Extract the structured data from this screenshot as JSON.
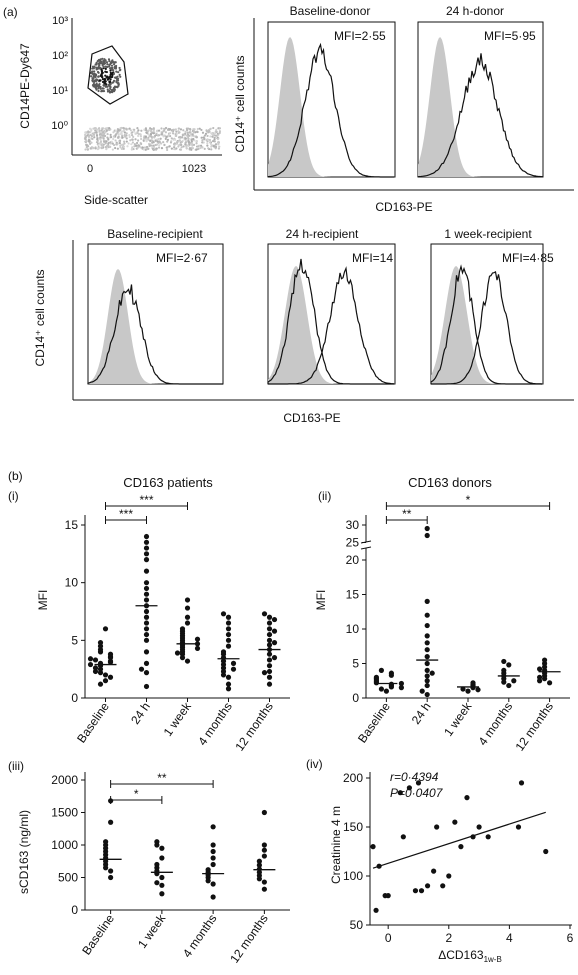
{
  "panel_labels": {
    "a": "(a)",
    "b": "(b)"
  },
  "chart_data": [
    {
      "id": "a-scatter",
      "type": "scatter",
      "xlabel": "Side-scatter",
      "ylabel": "CD14PE-Dy647",
      "x_tick_labels": [
        "0",
        "1023"
      ],
      "y_tick_labels": [
        "10⁰",
        "10¹",
        "10²",
        "10³"
      ],
      "y_scale": "log",
      "xlim": [
        0,
        1023
      ],
      "ylim_log": [
        0,
        3
      ],
      "gate": "polygon around CD14-high cluster"
    },
    {
      "id": "a-histograms",
      "type": "area",
      "ylabel": "CD14⁺ cell counts",
      "xlabel": "CD163-PE",
      "panels": [
        {
          "title": "Baseline-donor",
          "mfi": "MFI=2·55"
        },
        {
          "title": "24 h-donor",
          "mfi": "MFI=5·95"
        },
        {
          "title": "Baseline-recipient",
          "mfi": "MFI=2·67"
        },
        {
          "title": "24 h-recipient",
          "mfi": "MFI=14"
        },
        {
          "title": "1 week-recipient",
          "mfi": "MFI=4·85"
        }
      ]
    },
    {
      "id": "b-i",
      "type": "scatter",
      "panel": "(i)",
      "title": "CD163 patients",
      "ylabel": "MFI",
      "categories": [
        "Baseline",
        "24 h",
        "1 week",
        "4 months",
        "12 months"
      ],
      "ylim": [
        0,
        15
      ],
      "yticks": [
        0,
        5,
        10,
        15
      ],
      "points": [
        [
          2.0,
          2.2,
          2.5,
          2.8,
          3.0,
          3.1,
          3.2,
          3.3,
          3.5,
          3.6,
          3.8,
          4.0,
          4.2,
          4.5,
          1.5,
          1.8,
          2.3,
          2.6,
          2.9,
          3.4,
          4.8,
          6.0,
          1.2
        ],
        [
          1.0,
          2.2,
          3.0,
          4.0,
          5.0,
          5.5,
          6.0,
          6.5,
          7.0,
          7.5,
          8.0,
          8.5,
          9.0,
          9.5,
          10.0,
          11.0,
          12.0,
          12.5,
          13.0,
          13.5,
          14.0,
          2.5
        ],
        [
          3.2,
          3.5,
          3.8,
          4.0,
          4.2,
          4.4,
          4.6,
          4.8,
          5.0,
          5.2,
          5.4,
          5.6,
          5.8,
          6.0,
          6.5,
          7.0,
          7.8,
          8.5,
          4.3,
          5.1,
          3.9,
          4.7
        ],
        [
          0.8,
          1.2,
          1.8,
          2.0,
          2.3,
          2.6,
          2.9,
          3.2,
          3.5,
          3.8,
          4.0,
          4.5,
          5.0,
          5.5,
          6.0,
          6.5,
          7.0,
          7.3,
          2.5,
          3.0
        ],
        [
          1.2,
          1.8,
          2.3,
          2.8,
          3.3,
          3.8,
          4.2,
          4.6,
          5.0,
          5.5,
          6.0,
          6.5,
          7.0,
          7.3,
          3.5,
          4.8,
          2.2,
          5.8,
          6.8
        ]
      ],
      "medians": [
        2.9,
        8.0,
        4.7,
        3.4,
        4.2
      ],
      "significance": [
        {
          "from": "Baseline",
          "to": "24 h",
          "label": "***"
        },
        {
          "from": "Baseline",
          "to": "1 week",
          "label": "***"
        }
      ]
    },
    {
      "id": "b-ii",
      "type": "scatter",
      "panel": "(ii)",
      "title": "CD163 donors",
      "ylabel": "MFI",
      "categories": [
        "Baseline",
        "24 h",
        "1 week",
        "4 months",
        "12 months"
      ],
      "ylim": [
        0,
        30
      ],
      "yticks": [
        "0",
        "5",
        "10",
        "15",
        "20",
        "25",
        "30"
      ],
      "axis_break": "between 20 and 25",
      "points": [
        [
          1.0,
          1.3,
          1.6,
          1.8,
          2.0,
          2.2,
          2.4,
          2.6,
          2.8,
          3.0,
          3.3,
          3.6,
          4.0,
          2.1,
          1.5
        ],
        [
          0.5,
          1.0,
          1.8,
          2.5,
          3.2,
          4.0,
          5.0,
          6.0,
          7.0,
          8.0,
          9.0,
          10.5,
          12.0,
          14.0,
          27.0,
          29.0,
          3.6
        ],
        [
          1.0,
          1.3,
          1.5,
          1.8,
          2.0,
          2.2,
          1.2
        ],
        [
          1.8,
          2.3,
          2.8,
          3.2,
          3.6,
          4.0,
          4.8,
          5.3,
          2.5
        ],
        [
          2.2,
          2.8,
          3.2,
          3.6,
          4.0,
          4.5,
          5.0,
          5.5,
          3.0,
          4.2,
          2.5
        ]
      ],
      "medians": [
        2.1,
        5.5,
        1.6,
        3.2,
        3.8
      ],
      "significance": [
        {
          "from": "Baseline",
          "to": "24 h",
          "label": "**"
        },
        {
          "from": "Baseline",
          "to": "12 months",
          "label": "*"
        }
      ]
    },
    {
      "id": "b-iii",
      "type": "scatter",
      "panel": "(iii)",
      "title": "",
      "ylabel": "sCD163 (ng/ml)",
      "categories": [
        "Baseline",
        "1 week",
        "4 months",
        "12 months"
      ],
      "ylim": [
        0,
        2000
      ],
      "yticks": [
        0,
        500,
        1000,
        1500,
        2000
      ],
      "points": [
        [
          500,
          600,
          650,
          700,
          750,
          800,
          850,
          900,
          950,
          1000,
          1050,
          1350,
          1680
        ],
        [
          250,
          380,
          420,
          500,
          560,
          600,
          650,
          700,
          800,
          950,
          1000,
          1050
        ],
        [
          200,
          400,
          450,
          500,
          540,
          580,
          620,
          700,
          800,
          900,
          1000,
          1280
        ],
        [
          320,
          430,
          480,
          530,
          580,
          630,
          690,
          750,
          830,
          920,
          1000,
          1500
        ]
      ],
      "medians": [
        780,
        580,
        560,
        620
      ],
      "significance": [
        {
          "from": "Baseline",
          "to": "1 week",
          "label": "*"
        },
        {
          "from": "Baseline",
          "to": "4 months",
          "label": "**"
        }
      ]
    },
    {
      "id": "b-iv",
      "type": "scatter",
      "panel": "(iv)",
      "title": "",
      "xlabel": "ΔCD163",
      "xlabel_sub": "1w-B",
      "ylabel": "Creatinine 4 m",
      "annot_r": "r=0·4394",
      "annot_p": "P=0·0407",
      "xlim": [
        -0.6,
        6
      ],
      "ylim": [
        50,
        200
      ],
      "xticks": [
        0,
        2,
        4,
        6
      ],
      "yticks": [
        50,
        100,
        150,
        200
      ],
      "x": [
        -0.5,
        -0.4,
        -0.3,
        -0.1,
        0.0,
        0.4,
        0.5,
        0.7,
        0.9,
        1.0,
        1.1,
        1.3,
        1.5,
        1.6,
        1.8,
        2.0,
        2.2,
        2.4,
        2.6,
        2.8,
        3.0,
        3.3,
        4.3,
        4.4,
        5.2
      ],
      "y": [
        130,
        65,
        110,
        80,
        80,
        185,
        140,
        190,
        85,
        195,
        85,
        90,
        105,
        150,
        90,
        100,
        155,
        130,
        180,
        140,
        150,
        140,
        150,
        195,
        125
      ],
      "fit": {
        "slope": 10.0,
        "intercept": 113
      }
    }
  ]
}
